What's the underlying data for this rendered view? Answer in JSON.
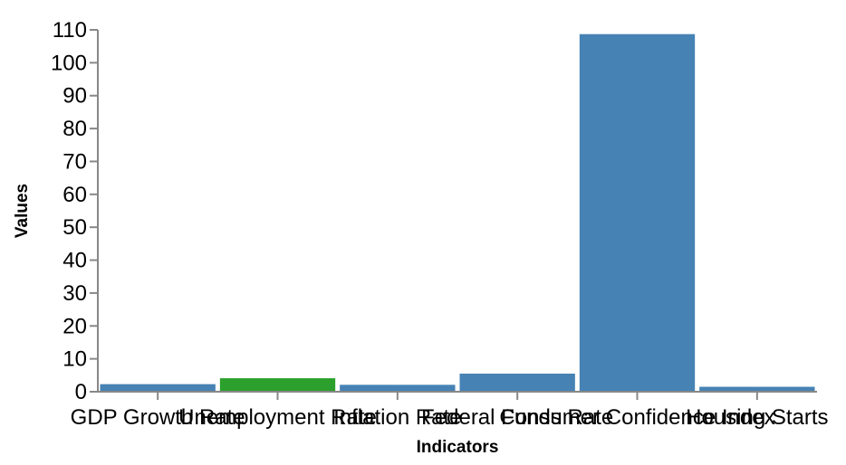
{
  "chart_data": {
    "type": "bar",
    "categories": [
      "GDP Growth Rate",
      "Unemployment Rate",
      "Inflation Rate",
      "Federal Funds Rate",
      "Consumer Confidence Index",
      "Housing Starts"
    ],
    "values": [
      2.3,
      4.1,
      2.1,
      5.5,
      108.7,
      1.5
    ],
    "bar_colors": [
      "#4682b4",
      "#2ca02c",
      "#4682b4",
      "#4682b4",
      "#4682b4",
      "#4682b4"
    ],
    "xlabel": "Indicators",
    "ylabel": "Values",
    "ylim": [
      0,
      110
    ],
    "yticks": [
      0,
      10,
      20,
      30,
      40,
      50,
      60,
      70,
      80,
      90,
      100,
      110
    ],
    "grid": false,
    "legend": "none"
  }
}
